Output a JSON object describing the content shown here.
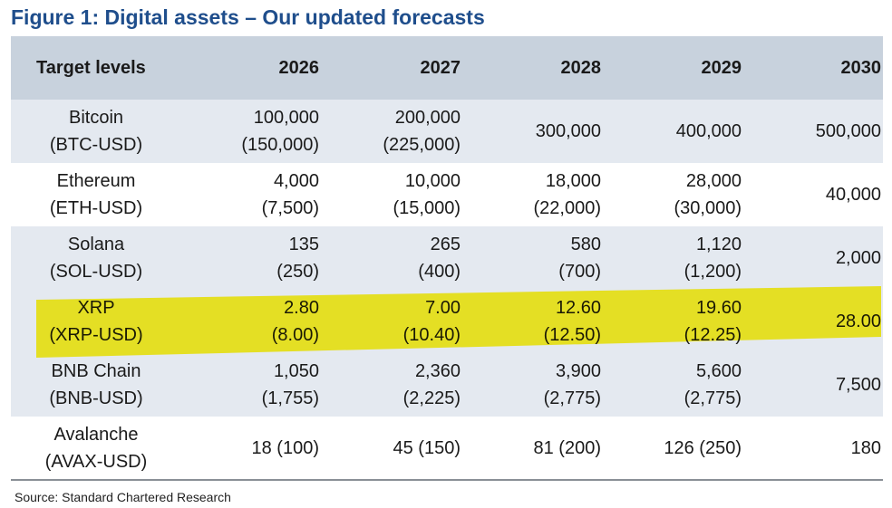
{
  "title": "Figure 1: Digital assets – Our updated forecasts",
  "table": {
    "header": [
      "Target levels",
      "2026",
      "2027",
      "2028",
      "2029",
      "2030"
    ],
    "rows": [
      {
        "label": [
          "Bitcoin",
          "(BTC-USD)"
        ],
        "cells": [
          [
            "100,000",
            "(150,000)"
          ],
          [
            "200,000",
            "(225,000)"
          ],
          [
            "300,000"
          ],
          [
            "400,000"
          ],
          [
            "500,000"
          ]
        ]
      },
      {
        "label": [
          "Ethereum",
          "(ETH-USD)"
        ],
        "cells": [
          [
            "4,000",
            "(7,500)"
          ],
          [
            "10,000",
            "(15,000)"
          ],
          [
            "18,000",
            "(22,000)"
          ],
          [
            "28,000",
            "(30,000)"
          ],
          [
            "40,000"
          ]
        ]
      },
      {
        "label": [
          "Solana",
          "(SOL-USD)"
        ],
        "cells": [
          [
            "135",
            "(250)"
          ],
          [
            "265",
            "(400)"
          ],
          [
            "580",
            "(700)"
          ],
          [
            "1,120",
            "(1,200)"
          ],
          [
            "2,000"
          ]
        ]
      },
      {
        "label": [
          "XRP",
          "(XRP-USD)"
        ],
        "cells": [
          [
            "2.80",
            "(8.00)"
          ],
          [
            "7.00",
            "(10.40)"
          ],
          [
            "12.60",
            "(12.50)"
          ],
          [
            "19.60",
            "(12.25)"
          ],
          [
            "28.00"
          ]
        ]
      },
      {
        "label": [
          "BNB Chain",
          "(BNB-USD)"
        ],
        "cells": [
          [
            "1,050",
            "(1,755)"
          ],
          [
            "2,360",
            "(2,225)"
          ],
          [
            "3,900",
            "(2,775)"
          ],
          [
            "5,600",
            "(2,775)"
          ],
          [
            "7,500"
          ]
        ]
      },
      {
        "label": [
          "Avalanche",
          "(AVAX-USD)"
        ],
        "cells": [
          [
            "18 (100)"
          ],
          [
            "45 (150)"
          ],
          [
            "81 (200)"
          ],
          [
            "126 (250)"
          ],
          [
            "180"
          ]
        ]
      }
    ]
  },
  "source": "Source: Standard Chartered Research"
}
